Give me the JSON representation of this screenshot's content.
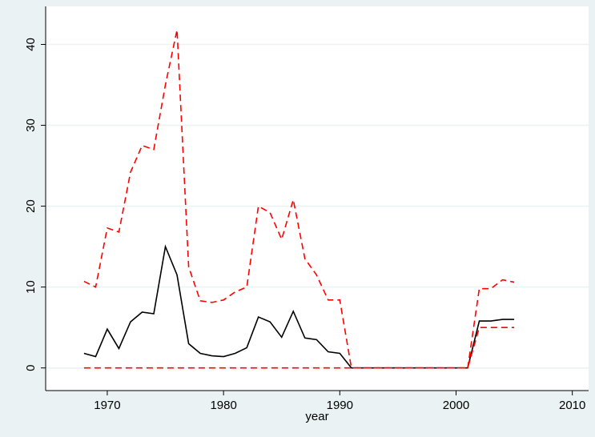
{
  "chart_data": {
    "type": "line",
    "x_label": "year",
    "x": [
      1968,
      1969,
      1970,
      1971,
      1972,
      1973,
      1974,
      1975,
      1976,
      1977,
      1978,
      1979,
      1980,
      1981,
      1982,
      1983,
      1984,
      1985,
      1986,
      1987,
      1988,
      1989,
      1990,
      1991,
      1992,
      1993,
      1994,
      1995,
      1996,
      1997,
      1998,
      1999,
      2000,
      2001,
      2002,
      2003,
      2004,
      2005
    ],
    "series": [
      {
        "color": "#000000",
        "style": "solid",
        "values": [
          1.8,
          1.4,
          4.8,
          2.4,
          5.7,
          6.9,
          6.7,
          15,
          11.5,
          3.0,
          1.8,
          1.5,
          1.4,
          1.8,
          2.5,
          6.3,
          5.7,
          3.8,
          7.0,
          3.7,
          3.5,
          2.0,
          1.8,
          0,
          0,
          0,
          0,
          0,
          0,
          0,
          0,
          0,
          0,
          0,
          5.8,
          5.8,
          6.0,
          6.0
        ]
      },
      {
        "color": "#ff0000",
        "style": "dashed",
        "values": [
          10.7,
          10,
          17.3,
          16.8,
          24.2,
          27.5,
          27,
          35,
          41.8,
          12.5,
          8.3,
          8.1,
          8.4,
          9.4,
          10,
          20,
          19.2,
          15.9,
          20.8,
          13.5,
          11.5,
          8.4,
          8.4,
          0,
          0,
          0,
          0,
          0,
          0,
          0,
          0,
          0,
          0,
          0,
          9.8,
          9.8,
          10.9,
          10.6
        ]
      },
      {
        "color": "#ff0000",
        "style": "dashed",
        "values": [
          0,
          0,
          0,
          0,
          0,
          0,
          0,
          0,
          0,
          0,
          0,
          0,
          0,
          0,
          0,
          0,
          0,
          0,
          0,
          0,
          0,
          0,
          0,
          0,
          0,
          0,
          0,
          0,
          0,
          0,
          0,
          0,
          0,
          0,
          5,
          5,
          5,
          5
        ]
      }
    ],
    "xlim": [
      1964.7,
      2011.4
    ],
    "xticks": [
      1970,
      1980,
      1990,
      2000,
      2010
    ],
    "ylim": [
      -2.8,
      44.7
    ],
    "yticks": [
      0,
      10,
      20,
      30,
      40
    ],
    "grid": true
  }
}
